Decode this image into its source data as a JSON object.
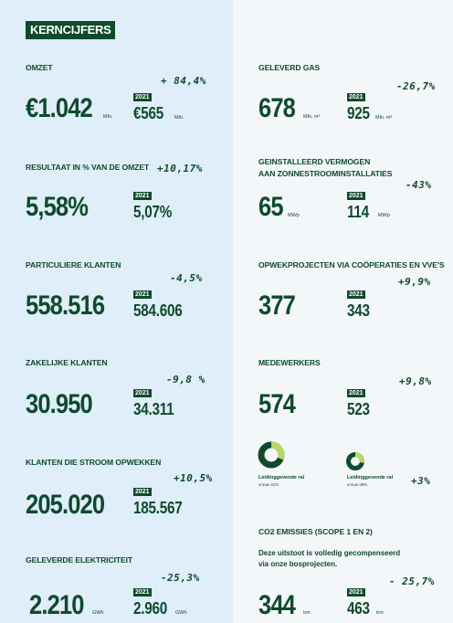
{
  "title": "KERNCIJFERS",
  "year_badge": "2021",
  "colors": {
    "dark_green": "#0f4a2c",
    "light_green": "#b7d86f",
    "left_bg": "#dfeef9"
  },
  "omzet": {
    "label": "OMZET",
    "change": "+ 84,4%",
    "value": "€1.042",
    "unit": "Mln.",
    "prev": "€565",
    "prev_unit": "Mln."
  },
  "resultaat": {
    "label": "RESULTAAT IN % VAN DE OMZET",
    "change": "+10,17%",
    "value": "5,58%",
    "prev": "5,07%"
  },
  "particuliere": {
    "label": "PARTICULIERE KLANTEN",
    "change": "-4,5%",
    "value": "558.516",
    "prev": "584.606"
  },
  "zakelijke": {
    "label": "ZAKELIJKE KLANTEN",
    "change": "-9,8 %",
    "value": "30.950",
    "prev": "34.311"
  },
  "stroom_opwekken": {
    "label": "KLANTEN DIE STROOM OPWEKKEN",
    "change": "+10,5%",
    "value": "205.020",
    "prev": "185.567"
  },
  "elektriciteit": {
    "label": "GELEVERDE ELEKTRICITEIT",
    "change": "-25,3%",
    "value": "2.210",
    "unit": "GWh",
    "prev": "2.960",
    "prev_unit": "GWh"
  },
  "gas": {
    "label": "GELEVERD GAS",
    "change": "-26,7%",
    "value": "678",
    "unit": "Mln. m³",
    "prev": "925",
    "prev_unit": "Mln. m³"
  },
  "zonnestroom": {
    "label_line1": "GEINSTALLEERD VERMOGEN",
    "label_line2": "AAN ZONNESTROOMINSTALLATIES",
    "change": "-43%",
    "value": "65",
    "unit": "MWp",
    "prev": "114",
    "prev_unit": "MWp"
  },
  "opwekprojecten": {
    "label": "OPWEKPROJECTEN VIA COÖPERATIES EN VVE'S",
    "change": "+9,9%",
    "value": "377",
    "prev": "343"
  },
  "medewerkers": {
    "label": "MEDEWERKERS",
    "change": "+9,8%",
    "value": "574",
    "prev": "523",
    "donut_current": {
      "label": "Leidinggevende ral",
      "sub": "vrouw 31%",
      "fraction": 0.31
    },
    "donut_prev": {
      "label": "Leidinggevende ral",
      "sub": "vrouw 28%",
      "fraction": 0.28
    },
    "donut_change": "+3%"
  },
  "co2": {
    "label": "CO2 EMISSIES (SCOPE 1 EN 2)",
    "note_line1": "Deze uitstoot is volledig gecompenseerd",
    "note_line2": "via onze bosprojecten.",
    "change": "- 25,7%",
    "value": "344",
    "unit": "ton",
    "prev": "463",
    "prev_unit": "ton"
  }
}
